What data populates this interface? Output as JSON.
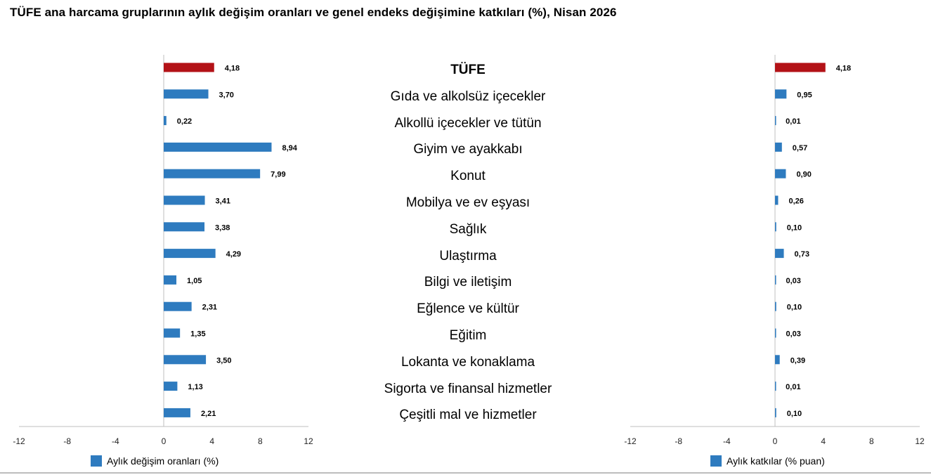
{
  "title": "TÜFE ana harcama gruplarının aylık değişim oranları ve genel endeks değişimine katkıları (%), Nisan 2026",
  "colors": {
    "highlight": "#b31217",
    "series": "#2e7bbf",
    "axis": "#bfbfbf"
  },
  "chart_data": [
    {
      "type": "bar",
      "orientation": "horizontal",
      "categories": [
        "TÜFE",
        "Gıda ve alkolsüz içecekler",
        "Alkollü içecekler ve tütün",
        "Giyim ve ayakkabı",
        "Konut",
        "Mobilya ve ev eşyası",
        "Sağlık",
        "Ulaştırma",
        "Bilgi ve iletişim",
        "Eğlence ve kültür",
        "Eğitim",
        "Lokanta ve konaklama",
        "Sigorta ve finansal hizmetler",
        "Çeşitli mal ve hizmetler"
      ],
      "series": [
        {
          "name": "Aylık değişim oranları (%)",
          "values": [
            4.18,
            3.7,
            0.22,
            8.94,
            7.99,
            3.41,
            3.38,
            4.29,
            1.05,
            2.31,
            1.35,
            3.5,
            1.13,
            2.21
          ],
          "data_labels": [
            "4,18",
            "3,70",
            "0,22",
            "8,94",
            "7,99",
            "3,41",
            "3,38",
            "4,29",
            "1,05",
            "2,31",
            "1,35",
            "3,50",
            "1,13",
            "2,21"
          ]
        }
      ],
      "xlim": [
        -12,
        12
      ],
      "xticks": [
        "-12",
        "-8",
        "-4",
        "0",
        "4",
        "8",
        "12"
      ],
      "grid": false,
      "legend": "bottom"
    },
    {
      "type": "bar",
      "orientation": "horizontal",
      "categories": [
        "TÜFE",
        "Gıda ve alkolsüz içecekler",
        "Alkollü içecekler ve tütün",
        "Giyim ve ayakkabı",
        "Konut",
        "Mobilya ve ev eşyası",
        "Sağlık",
        "Ulaştırma",
        "Bilgi ve iletişim",
        "Eğlence ve kültür",
        "Eğitim",
        "Lokanta ve konaklama",
        "Sigorta ve finansal hizmetler",
        "Çeşitli mal ve hizmetler"
      ],
      "series": [
        {
          "name": "Aylık katkılar (% puan)",
          "values": [
            4.18,
            0.95,
            0.01,
            0.57,
            0.9,
            0.26,
            0.1,
            0.73,
            0.03,
            0.1,
            0.03,
            0.39,
            0.01,
            0.1
          ],
          "data_labels": [
            "4,18",
            "0,95",
            "0,01",
            "0,57",
            "0,90",
            "0,26",
            "0,10",
            "0,73",
            "0,03",
            "0,10",
            "0,03",
            "0,39",
            "0,01",
            "0,10"
          ]
        }
      ],
      "xlim": [
        -12,
        12
      ],
      "xticks": [
        "-12",
        "-8",
        "-4",
        "0",
        "4",
        "8",
        "12"
      ],
      "grid": false,
      "legend": "bottom"
    }
  ]
}
